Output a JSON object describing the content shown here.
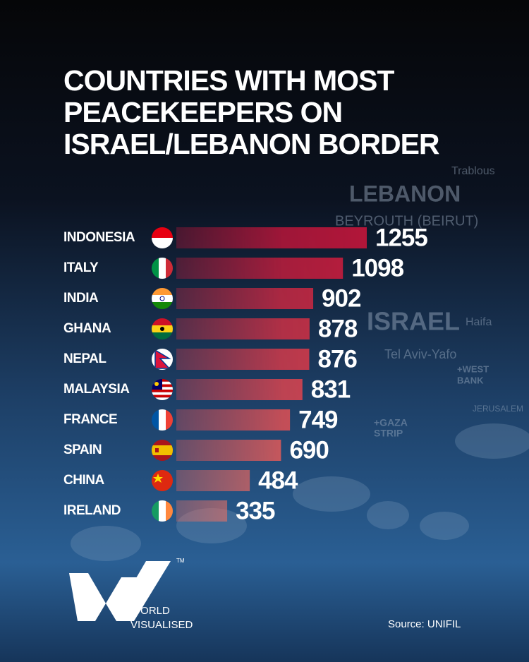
{
  "chart_data": {
    "type": "bar",
    "orientation": "horizontal",
    "title_lines": [
      "COUNTRIES WITH MOST",
      "PEACEKEEPERS ON",
      "ISRAEL/LEBANON BORDER"
    ],
    "categories": [
      "INDONESIA",
      "ITALY",
      "INDIA",
      "GHANA",
      "NEPAL",
      "MALAYSIA",
      "FRANCE",
      "SPAIN",
      "CHINA",
      "IRELAND"
    ],
    "values": [
      1255,
      1098,
      902,
      878,
      876,
      831,
      749,
      690,
      484,
      335
    ],
    "colors": [
      "#b8163a",
      "#bf1d3d",
      "#c62842",
      "#cc3045",
      "#d33a4a",
      "#d9444f",
      "#df5054",
      "#e45a58",
      "#e9665e",
      "#ee7063"
    ],
    "source": "Source: UNIFIL",
    "brand": [
      "WORLD",
      "VISUALISED"
    ],
    "brand_mark": "TM",
    "map_labels": [
      "Trablous",
      "LEBANON",
      "BEYROUTH (BEIRUT)",
      "ISRAEL",
      "Haifa",
      "Tel Aviv-Yafo",
      "+WEST",
      "BANK",
      "+GAZA",
      "STRIP",
      "JERUSALEM"
    ]
  }
}
